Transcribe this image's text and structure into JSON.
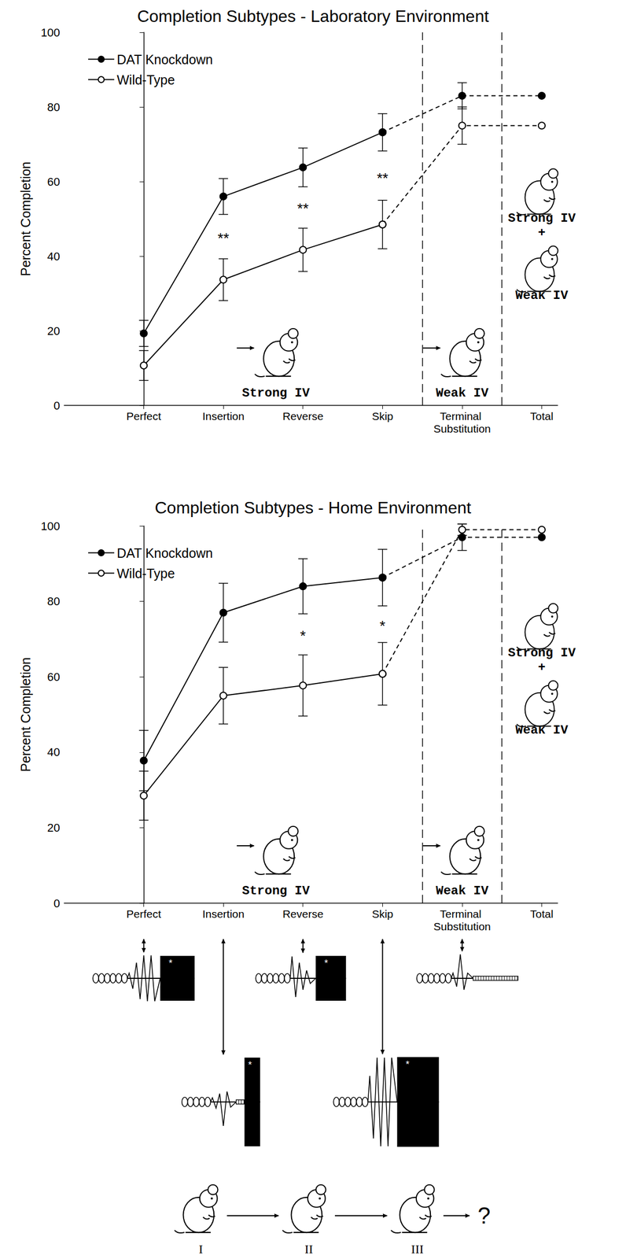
{
  "chart_data": [
    {
      "type": "line",
      "title": "Completion Subtypes - Laboratory Environment",
      "ylabel": "Percent Completion",
      "categories": [
        "Perfect",
        "Insertion",
        "Reverse",
        "Skip",
        "Terminal Substitution",
        "Total"
      ],
      "series": [
        {
          "name": "DAT Knockdown",
          "color": "#000000",
          "marker": "filled",
          "values": [
            19.3,
            56,
            63.8,
            73.2,
            83,
            83
          ],
          "errors": [
            3.5,
            4.8,
            5.2,
            5,
            3.5,
            null
          ]
        },
        {
          "name": "Wild-Type",
          "color": "#000000",
          "marker": "open",
          "values": [
            10.7,
            33.7,
            41.7,
            48.5,
            75,
            75
          ],
          "errors": [
            4,
            5.6,
            5.8,
            6.5,
            5,
            null
          ]
        }
      ],
      "significance": [
        null,
        "**",
        "**",
        "**",
        null,
        null
      ],
      "regions": [
        {
          "label": [
            "Strong IV"
          ],
          "categories": [
            "Insertion",
            "Reverse",
            "Skip"
          ]
        },
        {
          "label": [
            "Weak IV"
          ],
          "categories": [
            "Terminal Substitution"
          ]
        },
        {
          "label": [
            "Strong IV",
            "+",
            "Weak IV"
          ],
          "categories": [
            "Total"
          ]
        }
      ],
      "ylim": [
        0,
        100
      ],
      "yticks": [
        0,
        20,
        40,
        60,
        80,
        100
      ],
      "legend": "upper left",
      "grid": false
    },
    {
      "type": "line",
      "title": "Completion Subtypes - Home Environment",
      "ylabel": "Percent Completion",
      "categories": [
        "Perfect",
        "Insertion",
        "Reverse",
        "Skip",
        "Terminal Substitution",
        "Total"
      ],
      "series": [
        {
          "name": "DAT Knockdown",
          "color": "#000000",
          "marker": "filled",
          "values": [
            37.8,
            77,
            84,
            86.3,
            97,
            97
          ],
          "errors": [
            8,
            7.8,
            7.3,
            7.5,
            3.5,
            null
          ]
        },
        {
          "name": "Wild-Type",
          "color": "#000000",
          "marker": "open",
          "values": [
            28.5,
            55,
            57.7,
            60.8,
            99,
            99
          ],
          "errors": [
            6.5,
            7.5,
            8.1,
            8.3,
            1.5,
            null
          ]
        }
      ],
      "significance": [
        null,
        null,
        "*",
        "*",
        null,
        null
      ],
      "regions": [
        {
          "label": [
            "Strong IV"
          ],
          "categories": [
            "Insertion",
            "Reverse",
            "Skip"
          ]
        },
        {
          "label": [
            "Weak IV"
          ],
          "categories": [
            "Terminal Substitution"
          ]
        },
        {
          "label": [
            "Strong IV",
            "+",
            "Weak IV"
          ],
          "categories": [
            "Total"
          ]
        }
      ],
      "ylim": [
        0,
        100
      ],
      "yticks": [
        0,
        20,
        40,
        60,
        80,
        100
      ],
      "legend": "upper left",
      "grid": false
    }
  ],
  "diagram": {
    "patterns": [
      {
        "category": "Perfect",
        "marker": "*"
      },
      {
        "category": "Insertion",
        "marker": "*"
      },
      {
        "category": "Reverse",
        "marker": "*"
      },
      {
        "category": "Skip",
        "marker": "*"
      },
      {
        "category": "Terminal Substitution"
      }
    ],
    "sequence": [
      "I",
      "II",
      "III"
    ],
    "end": "?"
  }
}
